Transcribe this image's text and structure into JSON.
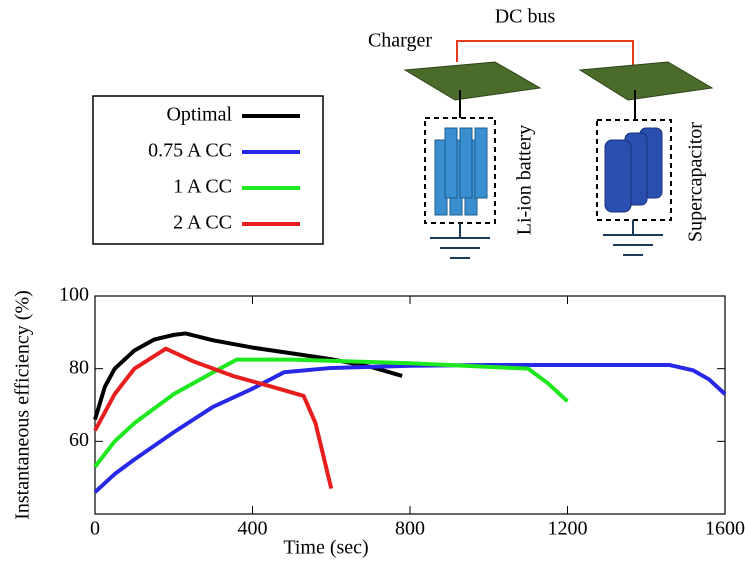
{
  "diagram": {
    "bus_label": "DC bus",
    "charger_label": "Charger",
    "battery_label": "Li-ion battery",
    "supercap_label": "Supercapacitor"
  },
  "chart_data": {
    "type": "line",
    "xlabel": "Time (sec)",
    "ylabel": "Instantaneous efficiency (%)",
    "xlim": [
      0,
      1600
    ],
    "ylim": [
      40,
      100
    ],
    "xticks": [
      0,
      400,
      800,
      1200,
      1600
    ],
    "yticks": [
      60,
      80,
      100
    ],
    "legend": "upper left",
    "series": [
      {
        "name": "Optimal",
        "color": "#000000",
        "x": [
          0,
          25,
          50,
          100,
          150,
          200,
          230,
          300,
          400,
          500,
          600,
          700,
          780
        ],
        "values": [
          66,
          75,
          80,
          85,
          88,
          89.3,
          89.7,
          87.8,
          85.8,
          84.2,
          82.6,
          80.5,
          78
        ]
      },
      {
        "name": "0.75 A CC",
        "color": "#2828e8",
        "x": [
          0,
          50,
          100,
          200,
          300,
          400,
          480,
          600,
          800,
          1000,
          1200,
          1460,
          1520,
          1560,
          1600
        ],
        "values": [
          46,
          51,
          55,
          62.5,
          69.5,
          74.5,
          79,
          80.2,
          80.8,
          81,
          81,
          81,
          79.5,
          77,
          73
        ]
      },
      {
        "name": "1 A CC",
        "color": "#1ee81e",
        "x": [
          0,
          50,
          100,
          200,
          300,
          360,
          500,
          800,
          1000,
          1100,
          1150,
          1200
        ],
        "values": [
          53,
          60,
          65,
          73,
          79,
          82.5,
          82.5,
          81.5,
          80.5,
          80,
          76,
          71
        ]
      },
      {
        "name": "2 A CC",
        "color": "#e81e1e",
        "x": [
          0,
          25,
          50,
          100,
          180,
          250,
          350,
          450,
          530,
          560,
          580,
          600
        ],
        "values": [
          63,
          68,
          73,
          80,
          85.5,
          82,
          78,
          75,
          72.5,
          65,
          56,
          47
        ]
      }
    ]
  }
}
